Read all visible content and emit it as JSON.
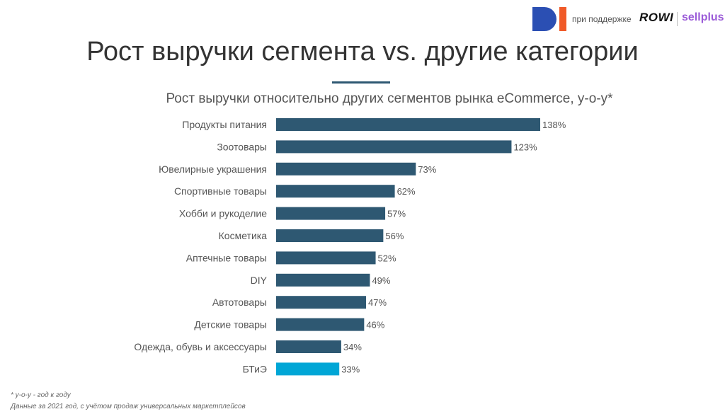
{
  "header": {
    "sponsor_text": "при поддержке",
    "rowi": "ROWI",
    "sellplus": "sellplus"
  },
  "title": "Рост выручки сегмента vs. другие категории",
  "footnotes": {
    "line1": "* у-о-у - год к году",
    "line2": "Данные за 2021 год, с учётом продаж универсальных маркетплейсов"
  },
  "colors": {
    "bar": "#2e5872",
    "highlight": "#00a6d6",
    "label": "#555555"
  },
  "chart_data": {
    "type": "bar",
    "orientation": "horizontal",
    "title": "Рост выручки относительно других сегментов рынка eCommerce, у-о-у*",
    "categories": [
      "Продукты питания",
      "Зоотовары",
      "Ювелирные украшения",
      "Спортивные товары",
      "Хобби и рукоделие",
      "Косметика",
      "Аптечные товары",
      "DIY",
      "Автотовары",
      "Детские товары",
      "Одежда, обувь и аксессуары",
      "БТиЭ"
    ],
    "values": [
      138,
      123,
      73,
      62,
      57,
      56,
      52,
      49,
      47,
      46,
      34,
      33
    ],
    "value_labels": [
      "138%",
      "123%",
      "73%",
      "62%",
      "57%",
      "56%",
      "52%",
      "49%",
      "47%",
      "46%",
      "34%",
      "33%"
    ],
    "highlight": "БТиЭ",
    "xlim": [
      0,
      138
    ],
    "grid": false
  }
}
